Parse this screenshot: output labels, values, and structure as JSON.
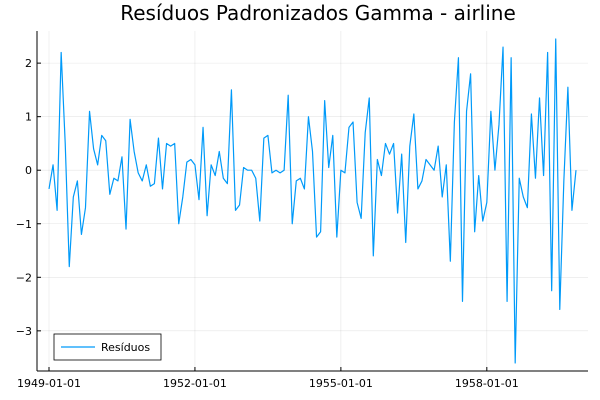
{
  "chart_data": {
    "type": "line",
    "title": "Resíduos Padronizados Gamma - airline",
    "xlabel": "",
    "ylabel": "",
    "grid": true,
    "legend_position": "bottom-left",
    "x_start": "1949-01-01",
    "x_step": "1 month",
    "xlim": [
      "1949-01-01",
      "1960-12-01"
    ],
    "ylim": [
      -3.75,
      2.6
    ],
    "x_ticks": [
      "1949-01-01",
      "1952-01-01",
      "1955-01-01",
      "1958-01-01"
    ],
    "y_ticks": [
      -3,
      -2,
      -1,
      0,
      1,
      2
    ],
    "y_tick_labels": [
      "−3",
      "−2",
      "−1",
      "0",
      "1",
      "2"
    ],
    "series": [
      {
        "name": "Resíduos",
        "color": "#009af9",
        "values": [
          -0.35,
          0.1,
          -0.75,
          2.2,
          0.5,
          -1.8,
          -0.5,
          -0.2,
          -1.2,
          -0.7,
          1.1,
          0.4,
          0.1,
          0.65,
          0.55,
          -0.45,
          -0.15,
          -0.2,
          0.25,
          -1.1,
          0.95,
          0.35,
          -0.05,
          -0.2,
          0.1,
          -0.3,
          -0.25,
          0.6,
          -0.35,
          0.5,
          0.45,
          0.5,
          -1.0,
          -0.5,
          0.15,
          0.2,
          0.1,
          -0.55,
          0.8,
          -0.85,
          0.1,
          -0.1,
          0.35,
          -0.15,
          -0.25,
          1.5,
          -0.75,
          -0.65,
          0.05,
          0.0,
          0.0,
          -0.15,
          -0.95,
          0.6,
          0.65,
          -0.05,
          0.0,
          -0.05,
          0.0,
          1.4,
          -1.0,
          -0.2,
          -0.15,
          -0.35,
          1.0,
          0.35,
          -1.25,
          -1.15,
          1.3,
          0.05,
          0.65,
          -1.25,
          0.0,
          -0.05,
          0.8,
          0.9,
          -0.6,
          -0.9,
          0.7,
          1.35,
          -1.6,
          0.2,
          -0.1,
          0.5,
          0.3,
          0.5,
          -0.8,
          0.3,
          -1.35,
          0.45,
          1.05,
          -0.35,
          -0.2,
          0.2,
          0.1,
          0.0,
          0.45,
          -0.5,
          0.1,
          -1.7,
          0.9,
          2.1,
          -2.45,
          1.1,
          1.8,
          -1.15,
          -0.1,
          -0.95,
          -0.6,
          1.1,
          0.0,
          0.85,
          2.3,
          -2.45,
          2.1,
          -3.6,
          -0.15,
          -0.5,
          -0.7,
          1.05,
          -0.15,
          1.35,
          -0.1,
          2.2,
          -2.25,
          2.45,
          -2.6,
          -0.2,
          1.55,
          -0.75,
          0.0
        ]
      }
    ]
  }
}
